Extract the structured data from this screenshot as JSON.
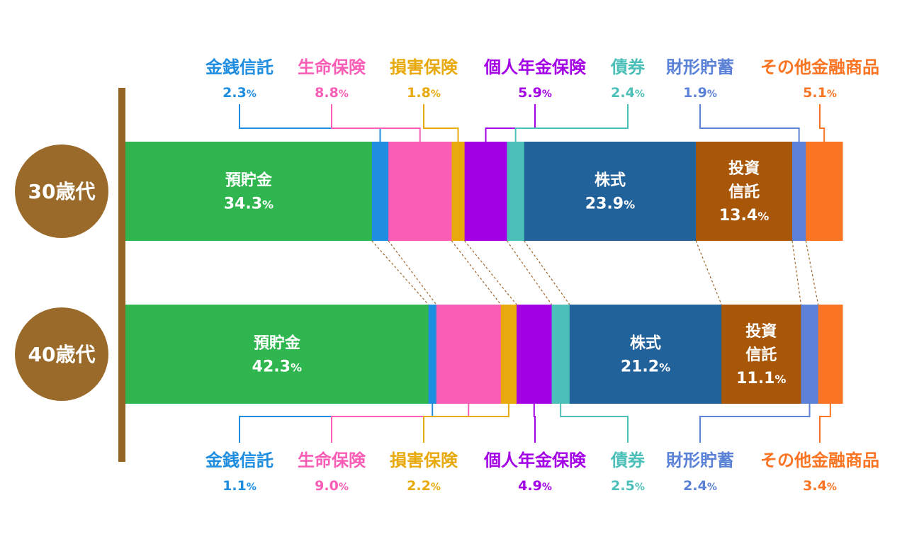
{
  "chart_data": {
    "type": "bar",
    "orientation": "horizontal",
    "stacked": true,
    "normalized": true,
    "unit": "%",
    "categories": [
      "30歳代",
      "40歳代"
    ],
    "series": [
      {
        "name": "預貯金",
        "color": "#2fb64f",
        "values": [
          34.3,
          42.3
        ]
      },
      {
        "name": "金銭信託",
        "color": "#1f8de0",
        "values": [
          2.3,
          1.1
        ]
      },
      {
        "name": "生命保険",
        "color": "#f95db6",
        "values": [
          8.8,
          9.0
        ]
      },
      {
        "name": "損害保険",
        "color": "#e8a90c",
        "values": [
          1.8,
          2.2
        ]
      },
      {
        "name": "個人年金保険",
        "color": "#a300e6",
        "values": [
          5.9,
          4.9
        ]
      },
      {
        "name": "債券",
        "color": "#4cc0b8",
        "values": [
          2.4,
          2.5
        ]
      },
      {
        "name": "株式",
        "color": "#22629b",
        "values": [
          23.9,
          21.2
        ]
      },
      {
        "name": "投資信託",
        "color": "#a85608",
        "values": [
          13.4,
          11.1
        ]
      },
      {
        "name": "財形貯蓄",
        "color": "#5b82d6",
        "values": [
          1.9,
          2.4
        ]
      },
      {
        "name": "その他金融商品",
        "color": "#fa7523",
        "values": [
          5.1,
          3.4
        ]
      }
    ],
    "inside_labels": {
      "預貯金": [
        "預貯金"
      ],
      "株式": [
        "株式"
      ],
      "投資信託": [
        "投資",
        "信託"
      ]
    },
    "external_labels": [
      "金銭信託",
      "生命保険",
      "損害保険",
      "個人年金保険",
      "債券",
      "財形貯蓄",
      "その他金融商品"
    ],
    "badge_color": "#9a6a2a",
    "axis_color": "#946424",
    "connector_color": "#a0642a"
  }
}
